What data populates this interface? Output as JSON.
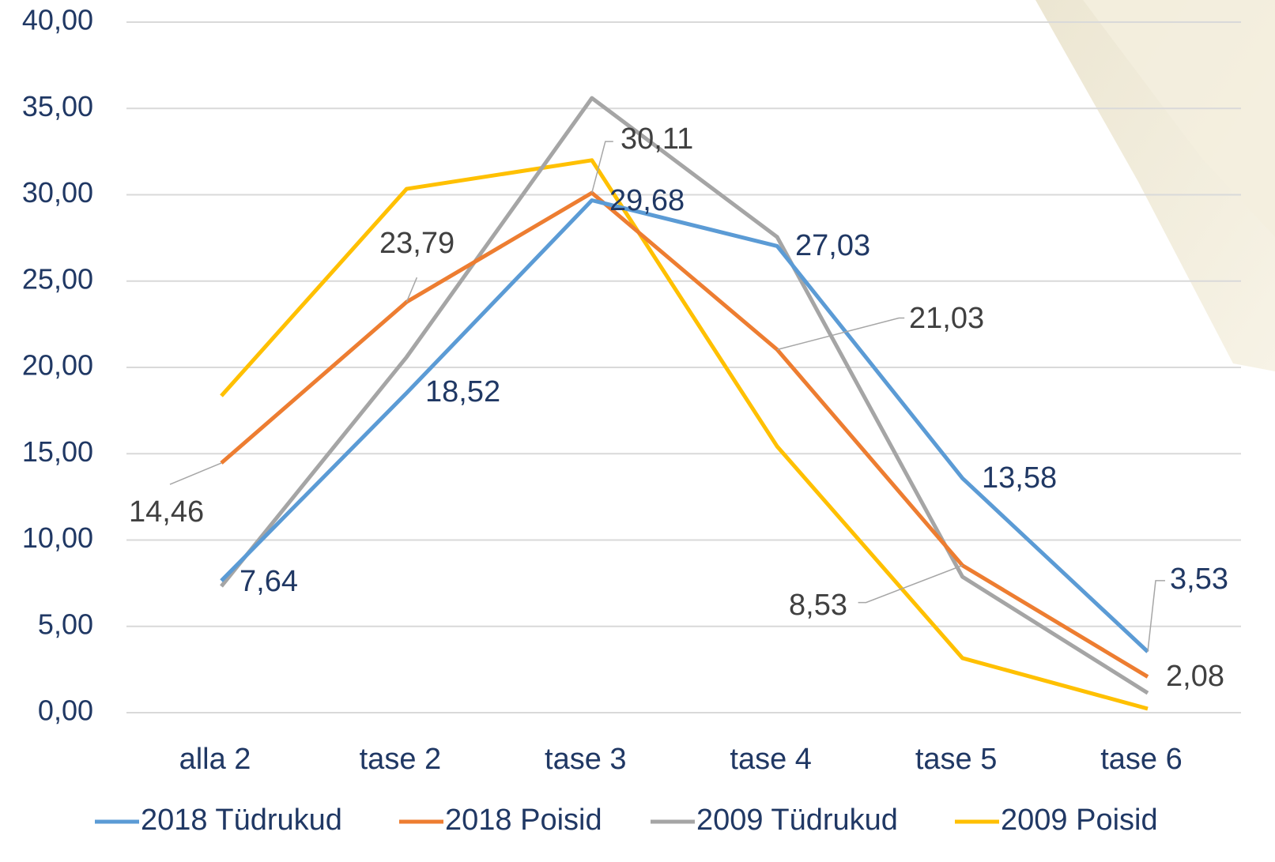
{
  "chart_data": {
    "type": "line",
    "categories": [
      "alla 2",
      "tase 2",
      "tase 3",
      "tase 4",
      "tase 5",
      "tase 6"
    ],
    "ylim": [
      0,
      40
    ],
    "yticks": [
      {
        "value": 0,
        "label": "0,00"
      },
      {
        "value": 5,
        "label": "5,00"
      },
      {
        "value": 10,
        "label": "10,00"
      },
      {
        "value": 15,
        "label": "15,00"
      },
      {
        "value": 20,
        "label": "20,00"
      },
      {
        "value": 25,
        "label": "25,00"
      },
      {
        "value": 30,
        "label": "30,00"
      },
      {
        "value": 35,
        "label": "35,00"
      },
      {
        "value": 40,
        "label": "40,00"
      }
    ],
    "grid": true,
    "legend": "bottom",
    "series": [
      {
        "name": "2018 Tüdrukud",
        "color": "#5b9bd5",
        "values": [
          7.64,
          18.52,
          29.68,
          27.03,
          13.58,
          3.53
        ],
        "value_labels": [
          "7,64",
          "18,52",
          "29,68",
          "27,03",
          "13,58",
          "3,53"
        ]
      },
      {
        "name": "2018 Poisid",
        "color": "#ed7d31",
        "values": [
          14.46,
          23.79,
          30.11,
          21.03,
          8.53,
          2.08
        ],
        "value_labels": [
          "14,46",
          "23,79",
          "30,11",
          "21,03",
          "8,53",
          "2,08"
        ]
      },
      {
        "name": "2009 Tüdrukud",
        "color": "#a5a5a5",
        "values": [
          7.32,
          20.6,
          35.6,
          27.55,
          7.87,
          1.14
        ]
      },
      {
        "name": "2009 Poisid",
        "color": "#ffc000",
        "values": [
          18.35,
          30.34,
          32.0,
          15.42,
          3.16,
          0.23
        ]
      }
    ]
  }
}
